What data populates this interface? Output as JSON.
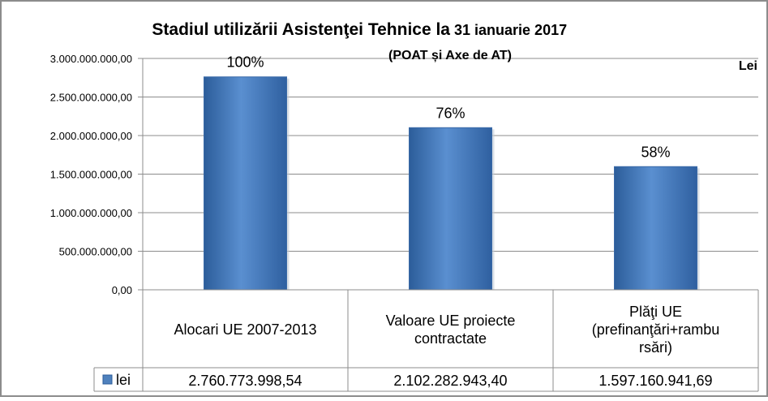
{
  "chart_data": {
    "type": "bar",
    "title": "Stadiul utilizării Asistenţei Tehnice la",
    "title_date": "31 ianuarie 2017",
    "subtitle": "(POAT și Axe de AT)",
    "unit_label": "Lei",
    "categories": [
      [
        "Alocari UE 2007-2013"
      ],
      [
        "Valoare UE proiecte",
        "contractate"
      ],
      [
        "Plăţi UE",
        "(prefinanţări+rambu",
        "rsări)"
      ]
    ],
    "series": [
      {
        "name": "lei",
        "values": [
          2760773998.54,
          2102282943.4,
          1597160941.69
        ],
        "value_labels": [
          "2.760.773.998,54",
          "2.102.282.943,40",
          "1.597.160.941,69"
        ],
        "color": "#4f81bd"
      }
    ],
    "percent_labels": [
      "100%",
      "76%",
      "58%"
    ],
    "yticks": [
      0,
      500000000,
      1000000000,
      1500000000,
      2000000000,
      2500000000,
      3000000000
    ],
    "ytick_labels": [
      "0,00",
      "500.000.000,00",
      "1.000.000.000,00",
      "1.500.000.000,00",
      "2.000.000.000,00",
      "2.500.000.000,00",
      "3.000.000.000,00"
    ],
    "ylim": [
      0,
      3000000000
    ],
    "grid": true,
    "legend": "in-table"
  }
}
